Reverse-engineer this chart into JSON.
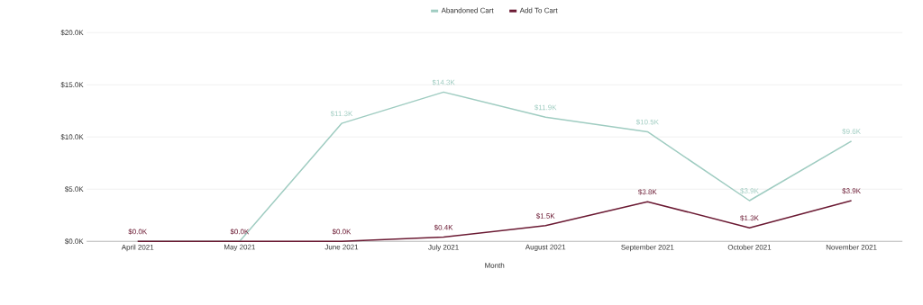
{
  "chart_data": {
    "type": "line",
    "xlabel": "Month",
    "categories": [
      "April 2021",
      "May 2021",
      "June 2021",
      "July 2021",
      "August 2021",
      "September 2021",
      "October 2021",
      "November 2021"
    ],
    "series": [
      {
        "name": "Abandoned Cart",
        "color": "#9fccc1",
        "values": [
          0,
          0,
          11.3,
          14.3,
          11.9,
          10.5,
          3.9,
          9.6
        ],
        "value_labels": [
          null,
          null,
          "$11.3K",
          "$14.3K",
          "$11.9K",
          "$10.5K",
          "$3.9K",
          "$9.6K"
        ]
      },
      {
        "name": "Add To Cart",
        "color": "#6b1a33",
        "values": [
          0,
          0,
          0,
          0.4,
          1.5,
          3.8,
          1.3,
          3.9
        ],
        "value_labels": [
          "$0.0K",
          "$0.0K",
          "$0.0K",
          "$0.4K",
          "$1.5K",
          "$3.8K",
          "$1.3K",
          "$3.9K"
        ]
      }
    ],
    "ylim": [
      0,
      20
    ],
    "yticks": [
      {
        "value": 0,
        "label": "$0.0K"
      },
      {
        "value": 5,
        "label": "$5.0K"
      },
      {
        "value": 10,
        "label": "$10.0K"
      },
      {
        "value": 15,
        "label": "$15.0K"
      },
      {
        "value": 20,
        "label": "$20.0K"
      }
    ],
    "grid": "y",
    "legend": "top",
    "marker": "none",
    "line_style": "solid"
  }
}
